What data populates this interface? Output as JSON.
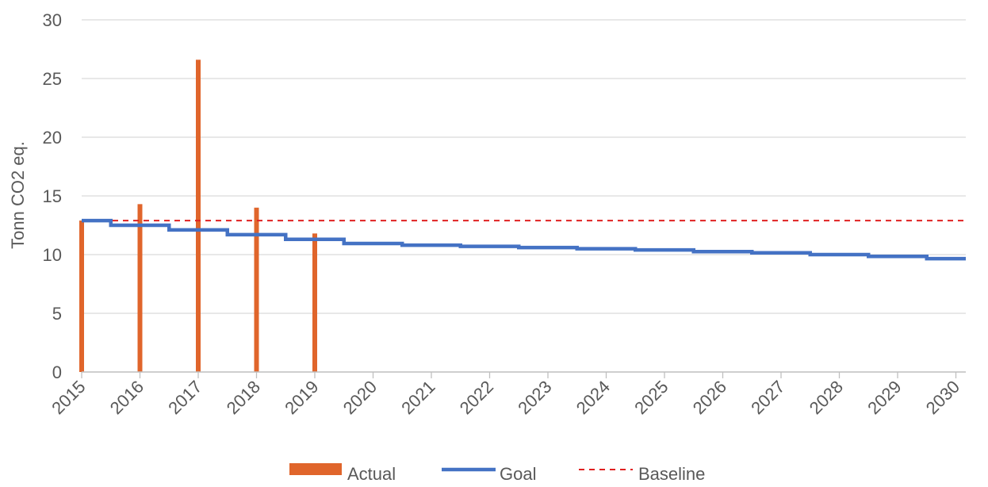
{
  "chart_data": {
    "type": "bar",
    "title": "",
    "xlabel": "",
    "ylabel": "Tonn CO2 eq.",
    "ylim": [
      0,
      30
    ],
    "yticks": [
      0,
      5,
      10,
      15,
      20,
      25,
      30
    ],
    "xlim": [
      2015,
      2030.5
    ],
    "xticks": [
      "2015",
      "2016",
      "2017",
      "2018",
      "2019",
      "2020",
      "2021",
      "2022",
      "2023",
      "2024",
      "2025",
      "2026",
      "2027",
      "2028",
      "2029",
      "2030"
    ],
    "grid": true,
    "legend_position": "bottom",
    "series": [
      {
        "name": "Actual",
        "type": "bar",
        "color": "#e0652b",
        "x": [
          2015,
          2016,
          2017,
          2018,
          2019
        ],
        "values": [
          12.9,
          14.3,
          26.6,
          14.0,
          11.8
        ]
      },
      {
        "name": "Goal",
        "type": "step-line",
        "color": "#4472c4",
        "x": [
          2015,
          2016,
          2017,
          2018,
          2019,
          2020,
          2021,
          2022,
          2023,
          2024,
          2025,
          2026,
          2027,
          2028,
          2029,
          2030
        ],
        "values": [
          12.9,
          12.5,
          12.1,
          11.7,
          11.3,
          10.95,
          10.8,
          10.7,
          10.6,
          10.5,
          10.4,
          10.25,
          10.15,
          10.0,
          9.85,
          9.65
        ]
      },
      {
        "name": "Baseline",
        "type": "dashed-line",
        "color": "#e02020",
        "values": [
          12.9
        ]
      }
    ]
  }
}
